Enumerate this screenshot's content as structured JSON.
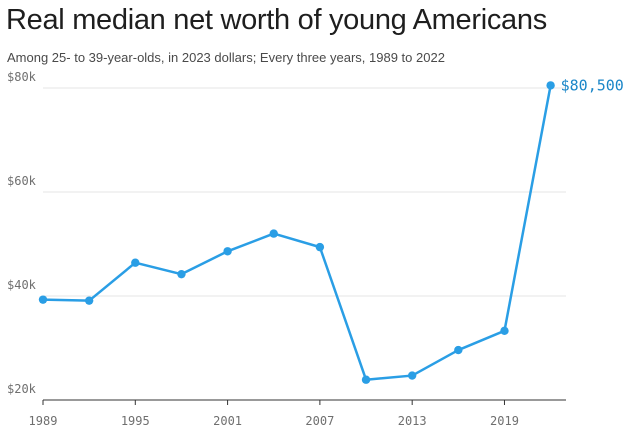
{
  "chart_data": {
    "type": "line",
    "title": "Real median net worth of young Americans",
    "subtitle": "Among 25- to 39-year-olds, in 2023 dollars; Every three years, 1989 to 2022",
    "xlabel": "",
    "ylabel": "",
    "x": [
      1989,
      1992,
      1995,
      1998,
      2001,
      2004,
      2007,
      2010,
      2013,
      2016,
      2019,
      2022
    ],
    "values": [
      39300,
      39100,
      46400,
      44200,
      48600,
      52000,
      49400,
      23900,
      24700,
      29600,
      33300,
      80500
    ],
    "ylim": [
      20000,
      80000
    ],
    "xlim": [
      1989,
      2023
    ],
    "x_ticks": [
      1989,
      1995,
      2001,
      2007,
      2013,
      2019
    ],
    "x_tick_labels": [
      "1989",
      "1995",
      "2001",
      "2007",
      "2013",
      "2019"
    ],
    "y_ticks": [
      20000,
      40000,
      60000,
      80000
    ],
    "y_tick_labels": [
      "$20k",
      "$40k",
      "$60k",
      "$80k"
    ],
    "end_label": "$80,500",
    "grid": true,
    "line_color": "#2a9ee5",
    "label_color": "#1a86c8",
    "grid_color": "#e6e6e6",
    "axis_color": "#333333"
  }
}
